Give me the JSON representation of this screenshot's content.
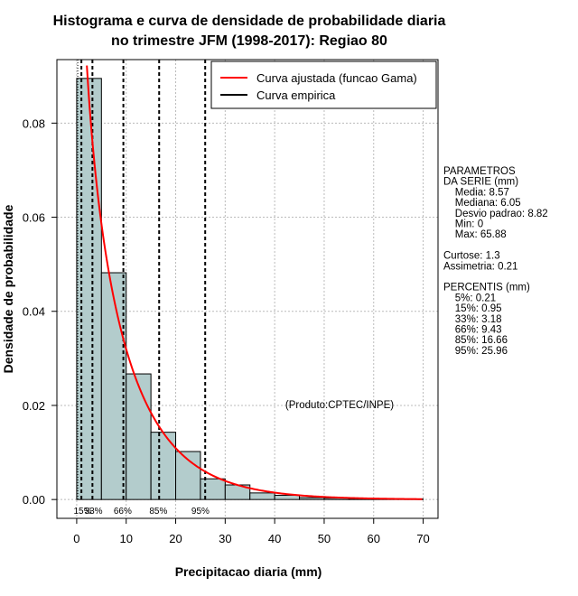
{
  "chart_data": {
    "type": "histogram",
    "title_line1": "Histograma e curva de densidade de probabilidade diaria",
    "title_line2": "no trimestre JFM (1998-2017): Regiao 80",
    "xlabel": "Precipitacao diaria (mm)",
    "ylabel": "Densidade de probabilidade",
    "xlim": [
      -4,
      73
    ],
    "ylim": [
      -0.004,
      0.0935
    ],
    "x_ticks": [
      0,
      10,
      20,
      30,
      40,
      50,
      60,
      70
    ],
    "y_ticks": [
      0.0,
      0.02,
      0.04,
      0.06,
      0.08
    ],
    "y_tick_labels": [
      "0.00",
      "0.02",
      "0.04",
      "0.06",
      "0.08"
    ],
    "grid": true,
    "bins": [
      {
        "x0": 0,
        "x1": 5,
        "density": 0.0895
      },
      {
        "x0": 5,
        "x1": 10,
        "density": 0.0482
      },
      {
        "x0": 10,
        "x1": 15,
        "density": 0.0267
      },
      {
        "x0": 15,
        "x1": 20,
        "density": 0.0143
      },
      {
        "x0": 20,
        "x1": 25,
        "density": 0.0102
      },
      {
        "x0": 25,
        "x1": 30,
        "density": 0.0044
      },
      {
        "x0": 30,
        "x1": 35,
        "density": 0.0031
      },
      {
        "x0": 35,
        "x1": 40,
        "density": 0.0014
      },
      {
        "x0": 40,
        "x1": 45,
        "density": 0.0009
      },
      {
        "x0": 45,
        "x1": 50,
        "density": 0.0004
      },
      {
        "x0": 50,
        "x1": 55,
        "density": 0.0003
      },
      {
        "x0": 55,
        "x1": 60,
        "density": 0.0002
      },
      {
        "x0": 60,
        "x1": 65,
        "density": 0.0001
      },
      {
        "x0": 65,
        "x1": 70,
        "density": 0.0001
      }
    ],
    "fitted_curve": {
      "name": "Curva ajustada (funcao Gama)",
      "shape": 0.8,
      "scale": 10.7,
      "color": "#ff0000"
    },
    "empirical_curve": {
      "name": "Curva empirica",
      "color": "#000000"
    },
    "legend_position": "top-right",
    "percentile_lines": [
      {
        "value": 0.95,
        "label": "15%",
        "label_x": 1.2
      },
      {
        "value": 3.18,
        "label": "33%",
        "label_x": 3.4
      },
      {
        "value": 9.43,
        "label": "66%",
        "label_x": 9.3
      },
      {
        "value": 16.66,
        "label": "85%",
        "label_x": 16.5
      },
      {
        "value": 25.96,
        "label": "95%",
        "label_x": 25.0
      }
    ],
    "extra_dotted_lines": [
      0.21
    ],
    "bar_color": "#b3cccc",
    "side_text": [
      "PARAMETROS",
      "DA SERIE (mm)",
      "  Media: 8.57",
      "  Mediana: 6.05",
      "  Desvio padrao: 8.82",
      "  Min: 0",
      "  Max: 65.88",
      "",
      "Curtose: 1.3",
      "Assimetria: 0.21",
      "",
      "PERCENTIS (mm)",
      "  5%: 0.21",
      "  15%: 0.95",
      "  33%: 3.18",
      "  66%: 9.43",
      "  85%: 16.66",
      "  95%: 25.96"
    ],
    "credit": "(Produto:CPTEC/INPE)"
  }
}
